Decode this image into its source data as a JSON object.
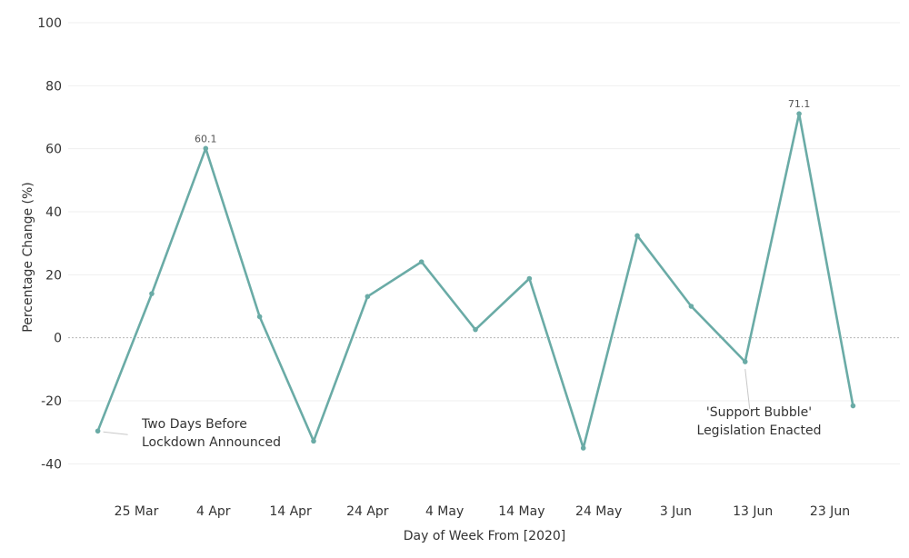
{
  "chart_data": {
    "type": "line",
    "title": "",
    "xlabel": "Day of Week From [2020]",
    "ylabel": "Percentage Change (%)",
    "ylim": [
      -50,
      100
    ],
    "yticks": [
      100,
      80,
      60,
      40,
      20,
      0,
      -20,
      -40
    ],
    "x_tick_labels": [
      "25 Mar",
      "4 Apr",
      "14 Apr",
      "24 Apr",
      "4 May",
      "14 May",
      "24 May",
      "3 Jun",
      "13 Jun",
      "23 Jun"
    ],
    "x": [
      "2020-03-20",
      "2020-03-27",
      "2020-04-03",
      "2020-04-10",
      "2020-04-17",
      "2020-04-24",
      "2020-05-01",
      "2020-05-08",
      "2020-05-15",
      "2020-05-22",
      "2020-05-29",
      "2020-06-05",
      "2020-06-12",
      "2020-06-19",
      "2020-06-26"
    ],
    "series": [
      {
        "values": [
          -29.6,
          14.0,
          60.1,
          6.7,
          -32.8,
          13.1,
          24.1,
          2.6,
          18.8,
          -35.0,
          32.4,
          10.0,
          -7.6,
          71.1,
          -21.6
        ],
        "color": "#6aaba6"
      }
    ],
    "data_labels": [
      {
        "index": 2,
        "text": "60.1"
      },
      {
        "index": 13,
        "text": "71.1"
      }
    ],
    "annotations": [
      {
        "index": 0,
        "lines": [
          "Two Days Before",
          "Lockdown Announced"
        ]
      },
      {
        "index": 12,
        "lines": [
          "'Support Bubble'",
          "Legislation Enacted"
        ]
      }
    ],
    "grid": true,
    "legend": "none"
  }
}
